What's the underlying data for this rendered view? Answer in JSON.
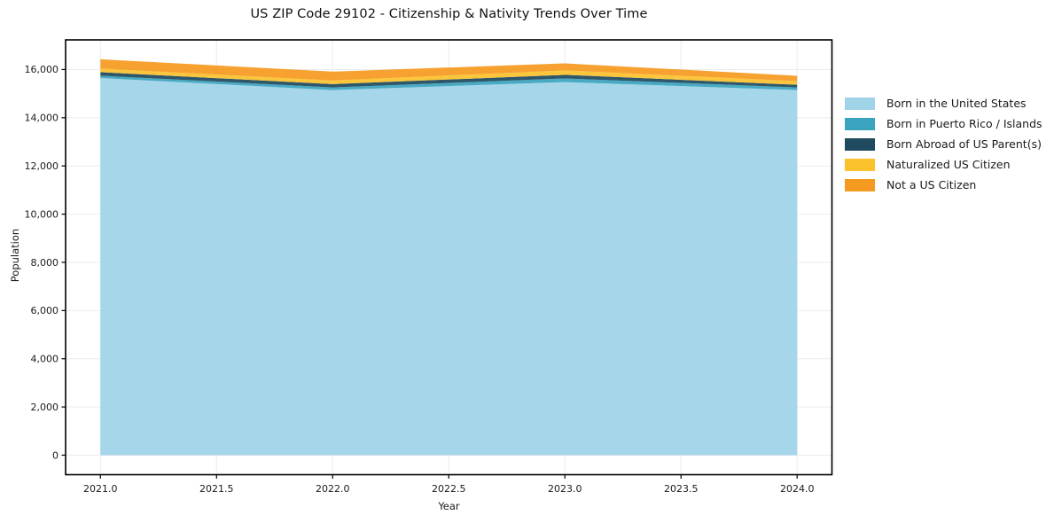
{
  "chart_data": {
    "type": "area",
    "stacked": true,
    "title": "US ZIP Code 29102 - Citizenship & Nativity Trends Over Time",
    "xlabel": "Year",
    "ylabel": "Population",
    "x": [
      2021,
      2022,
      2023,
      2024
    ],
    "series": [
      {
        "name": "Born in the United States",
        "color": "#9FD3E7",
        "values": [
          15650,
          15150,
          15480,
          15150
        ]
      },
      {
        "name": "Born in Puerto Rico / Islands",
        "color": "#3AA4BE",
        "values": [
          95,
          110,
          150,
          110
        ]
      },
      {
        "name": "Born Abroad of US Parent(s)",
        "color": "#1F4A5F",
        "values": [
          145,
          135,
          150,
          110
        ]
      },
      {
        "name": "Naturalized US Citizen",
        "color": "#FBC22D",
        "values": [
          150,
          150,
          185,
          150
        ]
      },
      {
        "name": "Not a US Citizen",
        "color": "#F59A20",
        "values": [
          385,
          370,
          290,
          220
        ]
      }
    ],
    "x_tick_values": [
      2021.0,
      2021.5,
      2022.0,
      2022.5,
      2023.0,
      2023.5,
      2024.0
    ],
    "x_tick_labels": [
      "2021.0",
      "2021.5",
      "2022.0",
      "2022.5",
      "2023.0",
      "2023.5",
      "2024.0"
    ],
    "y_tick_values": [
      0,
      2000,
      4000,
      6000,
      8000,
      10000,
      12000,
      14000,
      16000
    ],
    "y_tick_labels": [
      "0",
      "2,000",
      "4,000",
      "6,000",
      "8,000",
      "10,000",
      "12,000",
      "14,000",
      "16,000"
    ],
    "xlim": [
      2020.85,
      2024.15
    ],
    "ylim": [
      -810,
      17230
    ],
    "grid": true,
    "grid_color": "#ebebeb",
    "frame_color": "#000000",
    "tick_label_color": "#1a1a1a",
    "fill_opacity": 0.93,
    "legend_position": "right-outside-top"
  }
}
